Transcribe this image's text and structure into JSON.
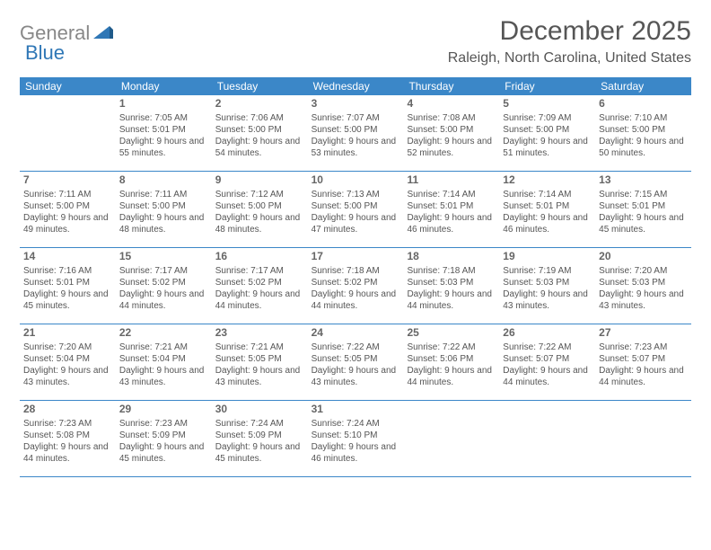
{
  "logo": {
    "text1": "General",
    "text2": "Blue"
  },
  "title": "December 2025",
  "location": "Raleigh, North Carolina, United States",
  "colors": {
    "header_bg": "#3b87c8",
    "header_text": "#ffffff",
    "text": "#555555",
    "rule": "#3b87c8",
    "logo_gray": "#888888",
    "logo_blue": "#2f77b6",
    "background": "#ffffff"
  },
  "day_names": [
    "Sunday",
    "Monday",
    "Tuesday",
    "Wednesday",
    "Thursday",
    "Friday",
    "Saturday"
  ],
  "weeks": [
    [
      null,
      {
        "n": "1",
        "sunrise": "7:05 AM",
        "sunset": "5:01 PM",
        "daylight": "9 hours and 55 minutes."
      },
      {
        "n": "2",
        "sunrise": "7:06 AM",
        "sunset": "5:00 PM",
        "daylight": "9 hours and 54 minutes."
      },
      {
        "n": "3",
        "sunrise": "7:07 AM",
        "sunset": "5:00 PM",
        "daylight": "9 hours and 53 minutes."
      },
      {
        "n": "4",
        "sunrise": "7:08 AM",
        "sunset": "5:00 PM",
        "daylight": "9 hours and 52 minutes."
      },
      {
        "n": "5",
        "sunrise": "7:09 AM",
        "sunset": "5:00 PM",
        "daylight": "9 hours and 51 minutes."
      },
      {
        "n": "6",
        "sunrise": "7:10 AM",
        "sunset": "5:00 PM",
        "daylight": "9 hours and 50 minutes."
      }
    ],
    [
      {
        "n": "7",
        "sunrise": "7:11 AM",
        "sunset": "5:00 PM",
        "daylight": "9 hours and 49 minutes."
      },
      {
        "n": "8",
        "sunrise": "7:11 AM",
        "sunset": "5:00 PM",
        "daylight": "9 hours and 48 minutes."
      },
      {
        "n": "9",
        "sunrise": "7:12 AM",
        "sunset": "5:00 PM",
        "daylight": "9 hours and 48 minutes."
      },
      {
        "n": "10",
        "sunrise": "7:13 AM",
        "sunset": "5:00 PM",
        "daylight": "9 hours and 47 minutes."
      },
      {
        "n": "11",
        "sunrise": "7:14 AM",
        "sunset": "5:01 PM",
        "daylight": "9 hours and 46 minutes."
      },
      {
        "n": "12",
        "sunrise": "7:14 AM",
        "sunset": "5:01 PM",
        "daylight": "9 hours and 46 minutes."
      },
      {
        "n": "13",
        "sunrise": "7:15 AM",
        "sunset": "5:01 PM",
        "daylight": "9 hours and 45 minutes."
      }
    ],
    [
      {
        "n": "14",
        "sunrise": "7:16 AM",
        "sunset": "5:01 PM",
        "daylight": "9 hours and 45 minutes."
      },
      {
        "n": "15",
        "sunrise": "7:17 AM",
        "sunset": "5:02 PM",
        "daylight": "9 hours and 44 minutes."
      },
      {
        "n": "16",
        "sunrise": "7:17 AM",
        "sunset": "5:02 PM",
        "daylight": "9 hours and 44 minutes."
      },
      {
        "n": "17",
        "sunrise": "7:18 AM",
        "sunset": "5:02 PM",
        "daylight": "9 hours and 44 minutes."
      },
      {
        "n": "18",
        "sunrise": "7:18 AM",
        "sunset": "5:03 PM",
        "daylight": "9 hours and 44 minutes."
      },
      {
        "n": "19",
        "sunrise": "7:19 AM",
        "sunset": "5:03 PM",
        "daylight": "9 hours and 43 minutes."
      },
      {
        "n": "20",
        "sunrise": "7:20 AM",
        "sunset": "5:03 PM",
        "daylight": "9 hours and 43 minutes."
      }
    ],
    [
      {
        "n": "21",
        "sunrise": "7:20 AM",
        "sunset": "5:04 PM",
        "daylight": "9 hours and 43 minutes."
      },
      {
        "n": "22",
        "sunrise": "7:21 AM",
        "sunset": "5:04 PM",
        "daylight": "9 hours and 43 minutes."
      },
      {
        "n": "23",
        "sunrise": "7:21 AM",
        "sunset": "5:05 PM",
        "daylight": "9 hours and 43 minutes."
      },
      {
        "n": "24",
        "sunrise": "7:22 AM",
        "sunset": "5:05 PM",
        "daylight": "9 hours and 43 minutes."
      },
      {
        "n": "25",
        "sunrise": "7:22 AM",
        "sunset": "5:06 PM",
        "daylight": "9 hours and 44 minutes."
      },
      {
        "n": "26",
        "sunrise": "7:22 AM",
        "sunset": "5:07 PM",
        "daylight": "9 hours and 44 minutes."
      },
      {
        "n": "27",
        "sunrise": "7:23 AM",
        "sunset": "5:07 PM",
        "daylight": "9 hours and 44 minutes."
      }
    ],
    [
      {
        "n": "28",
        "sunrise": "7:23 AM",
        "sunset": "5:08 PM",
        "daylight": "9 hours and 44 minutes."
      },
      {
        "n": "29",
        "sunrise": "7:23 AM",
        "sunset": "5:09 PM",
        "daylight": "9 hours and 45 minutes."
      },
      {
        "n": "30",
        "sunrise": "7:24 AM",
        "sunset": "5:09 PM",
        "daylight": "9 hours and 45 minutes."
      },
      {
        "n": "31",
        "sunrise": "7:24 AM",
        "sunset": "5:10 PM",
        "daylight": "9 hours and 46 minutes."
      },
      null,
      null,
      null
    ]
  ],
  "labels": {
    "sunrise": "Sunrise:",
    "sunset": "Sunset:",
    "daylight": "Daylight:"
  }
}
